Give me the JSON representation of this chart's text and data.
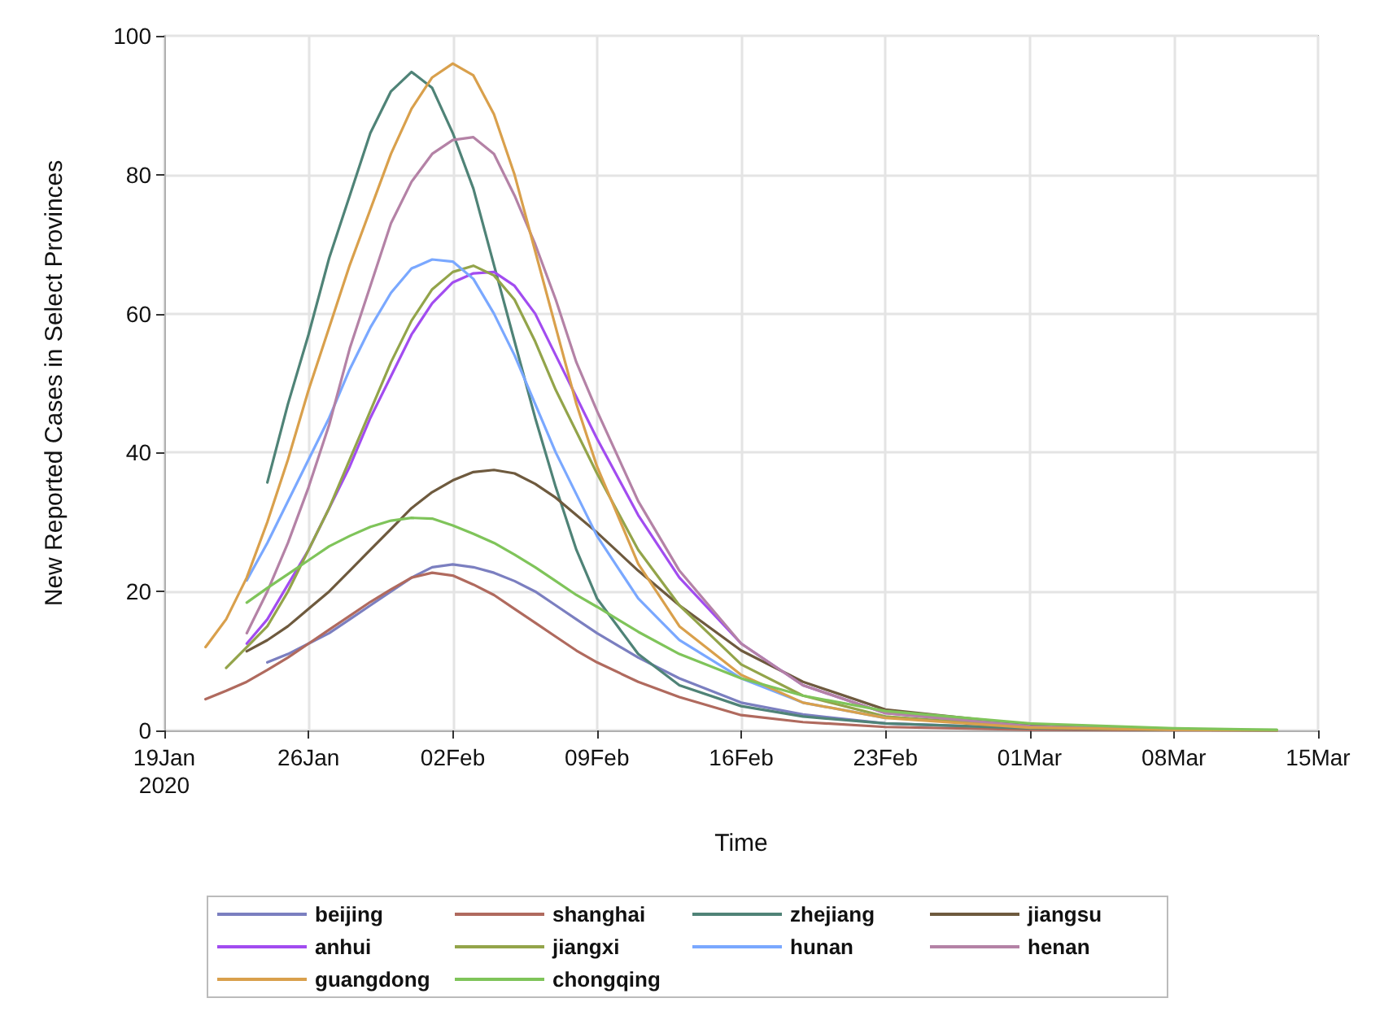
{
  "chart_data": {
    "type": "line",
    "xlabel": "Time",
    "ylabel": "New Reported Cases in Select Provinces",
    "x": [
      "2020-01-21",
      "2020-01-22",
      "2020-01-23",
      "2020-01-24",
      "2020-01-25",
      "2020-01-26",
      "2020-01-27",
      "2020-01-28",
      "2020-01-29",
      "2020-01-30",
      "2020-01-31",
      "2020-02-01",
      "2020-02-02",
      "2020-02-03",
      "2020-02-04",
      "2020-02-05",
      "2020-02-06",
      "2020-02-07",
      "2020-02-08",
      "2020-02-09",
      "2020-02-11",
      "2020-02-13",
      "2020-02-16",
      "2020-02-19",
      "2020-02-23",
      "2020-03-01",
      "2020-03-08",
      "2020-03-13"
    ],
    "series": [
      {
        "name": "beijing",
        "color": "#7b7fc0",
        "values": [
          null,
          null,
          null,
          9.8,
          11,
          12.5,
          14,
          16,
          18,
          20,
          22,
          23.5,
          23.9,
          23.5,
          22.7,
          21.5,
          20,
          18,
          16,
          14,
          10.5,
          7.5,
          4,
          2.3,
          1,
          0.3,
          0.1,
          0
        ]
      },
      {
        "name": "shanghai",
        "color": "#b06a5e",
        "values": [
          4.5,
          5.7,
          7,
          8.7,
          10.5,
          12.5,
          14.5,
          16.5,
          18.5,
          20.3,
          22,
          22.7,
          22.3,
          21,
          19.5,
          17.5,
          15.5,
          13.5,
          11.5,
          9.8,
          7,
          4.8,
          2.2,
          1.2,
          0.5,
          0.1,
          0,
          0
        ]
      },
      {
        "name": "zhejiang",
        "color": "#4f8377",
        "values": [
          null,
          null,
          null,
          35.7,
          47,
          57,
          68,
          77,
          86,
          92,
          94.8,
          92.5,
          86,
          78,
          67,
          56,
          45,
          35,
          26,
          19,
          11,
          6.5,
          3.5,
          2,
          1,
          0.3,
          0.1,
          0
        ]
      },
      {
        "name": "jiangsu",
        "color": "#6e5a3e",
        "values": [
          null,
          null,
          11.4,
          13,
          15,
          17.5,
          20,
          23,
          26,
          29,
          32,
          34.3,
          36,
          37.2,
          37.5,
          37,
          35.5,
          33.5,
          31,
          28.5,
          23,
          18,
          11.5,
          7,
          3,
          0.8,
          0.2,
          0
        ]
      },
      {
        "name": "anhui",
        "color": "#a24cf0",
        "values": [
          null,
          null,
          12.5,
          16,
          21,
          26,
          32,
          38,
          45,
          51,
          57,
          61.5,
          64.5,
          65.8,
          66,
          64,
          60,
          54,
          48,
          42,
          31,
          22,
          12.5,
          6.5,
          2.5,
          0.6,
          null,
          null
        ]
      },
      {
        "name": "jiangxi",
        "color": "#93a44a",
        "values": [
          null,
          9,
          12,
          15,
          20,
          26,
          32,
          39,
          46,
          53,
          59,
          63.5,
          66,
          66.9,
          65.5,
          62,
          56,
          49,
          43,
          37,
          26,
          18,
          9.5,
          5,
          2,
          0.5,
          0.1,
          0
        ]
      },
      {
        "name": "hunan",
        "color": "#7aa8ff",
        "values": [
          null,
          null,
          21.6,
          27,
          33,
          39,
          45,
          52,
          58,
          63,
          66.5,
          67.8,
          67.5,
          65,
          60,
          54,
          47,
          40,
          34,
          28,
          19,
          13,
          7.5,
          4,
          1.8,
          null,
          null,
          null
        ]
      },
      {
        "name": "henan",
        "color": "#b482a6",
        "values": [
          null,
          null,
          14,
          20,
          27,
          35,
          44,
          55,
          64,
          73,
          79,
          83,
          85,
          85.4,
          83,
          77,
          70,
          62,
          53,
          46,
          33,
          23,
          12.5,
          6.5,
          2.5,
          0.6,
          0.1,
          0
        ]
      },
      {
        "name": "guangdong",
        "color": "#d9a04c",
        "values": [
          12,
          16,
          22,
          30,
          39,
          49,
          58,
          67,
          75,
          83,
          89.5,
          94,
          96,
          94.3,
          88.7,
          80,
          69,
          58,
          47,
          38,
          24,
          15,
          8,
          4,
          1.8,
          0.4,
          0.1,
          0
        ]
      },
      {
        "name": "chongqing",
        "color": "#7fc45a",
        "values": [
          null,
          null,
          18.4,
          20.5,
          22.5,
          24.5,
          26.5,
          28,
          29.3,
          30.2,
          30.6,
          30.5,
          29.5,
          28.3,
          27,
          25.3,
          23.5,
          21.5,
          19.5,
          17.8,
          14.2,
          11,
          7.5,
          5,
          2.8,
          1,
          0.3,
          0.1
        ]
      }
    ],
    "xlim": [
      "2020-01-19",
      "2020-03-15"
    ],
    "xticks": [
      {
        "value": "2020-01-19",
        "label": "19Jan\n2020"
      },
      {
        "value": "2020-01-26",
        "label": "26Jan"
      },
      {
        "value": "2020-02-02",
        "label": "02Feb"
      },
      {
        "value": "2020-02-09",
        "label": "09Feb"
      },
      {
        "value": "2020-02-16",
        "label": "16Feb"
      },
      {
        "value": "2020-02-23",
        "label": "23Feb"
      },
      {
        "value": "2020-03-01",
        "label": "01Mar"
      },
      {
        "value": "2020-03-08",
        "label": "08Mar"
      },
      {
        "value": "2020-03-15",
        "label": "15Mar"
      }
    ],
    "ylim": [
      0,
      100
    ],
    "yticks": [
      0,
      20,
      40,
      60,
      80,
      100
    ],
    "grid": true,
    "legend": "bottom",
    "marker": "none",
    "line_style": "solid"
  }
}
